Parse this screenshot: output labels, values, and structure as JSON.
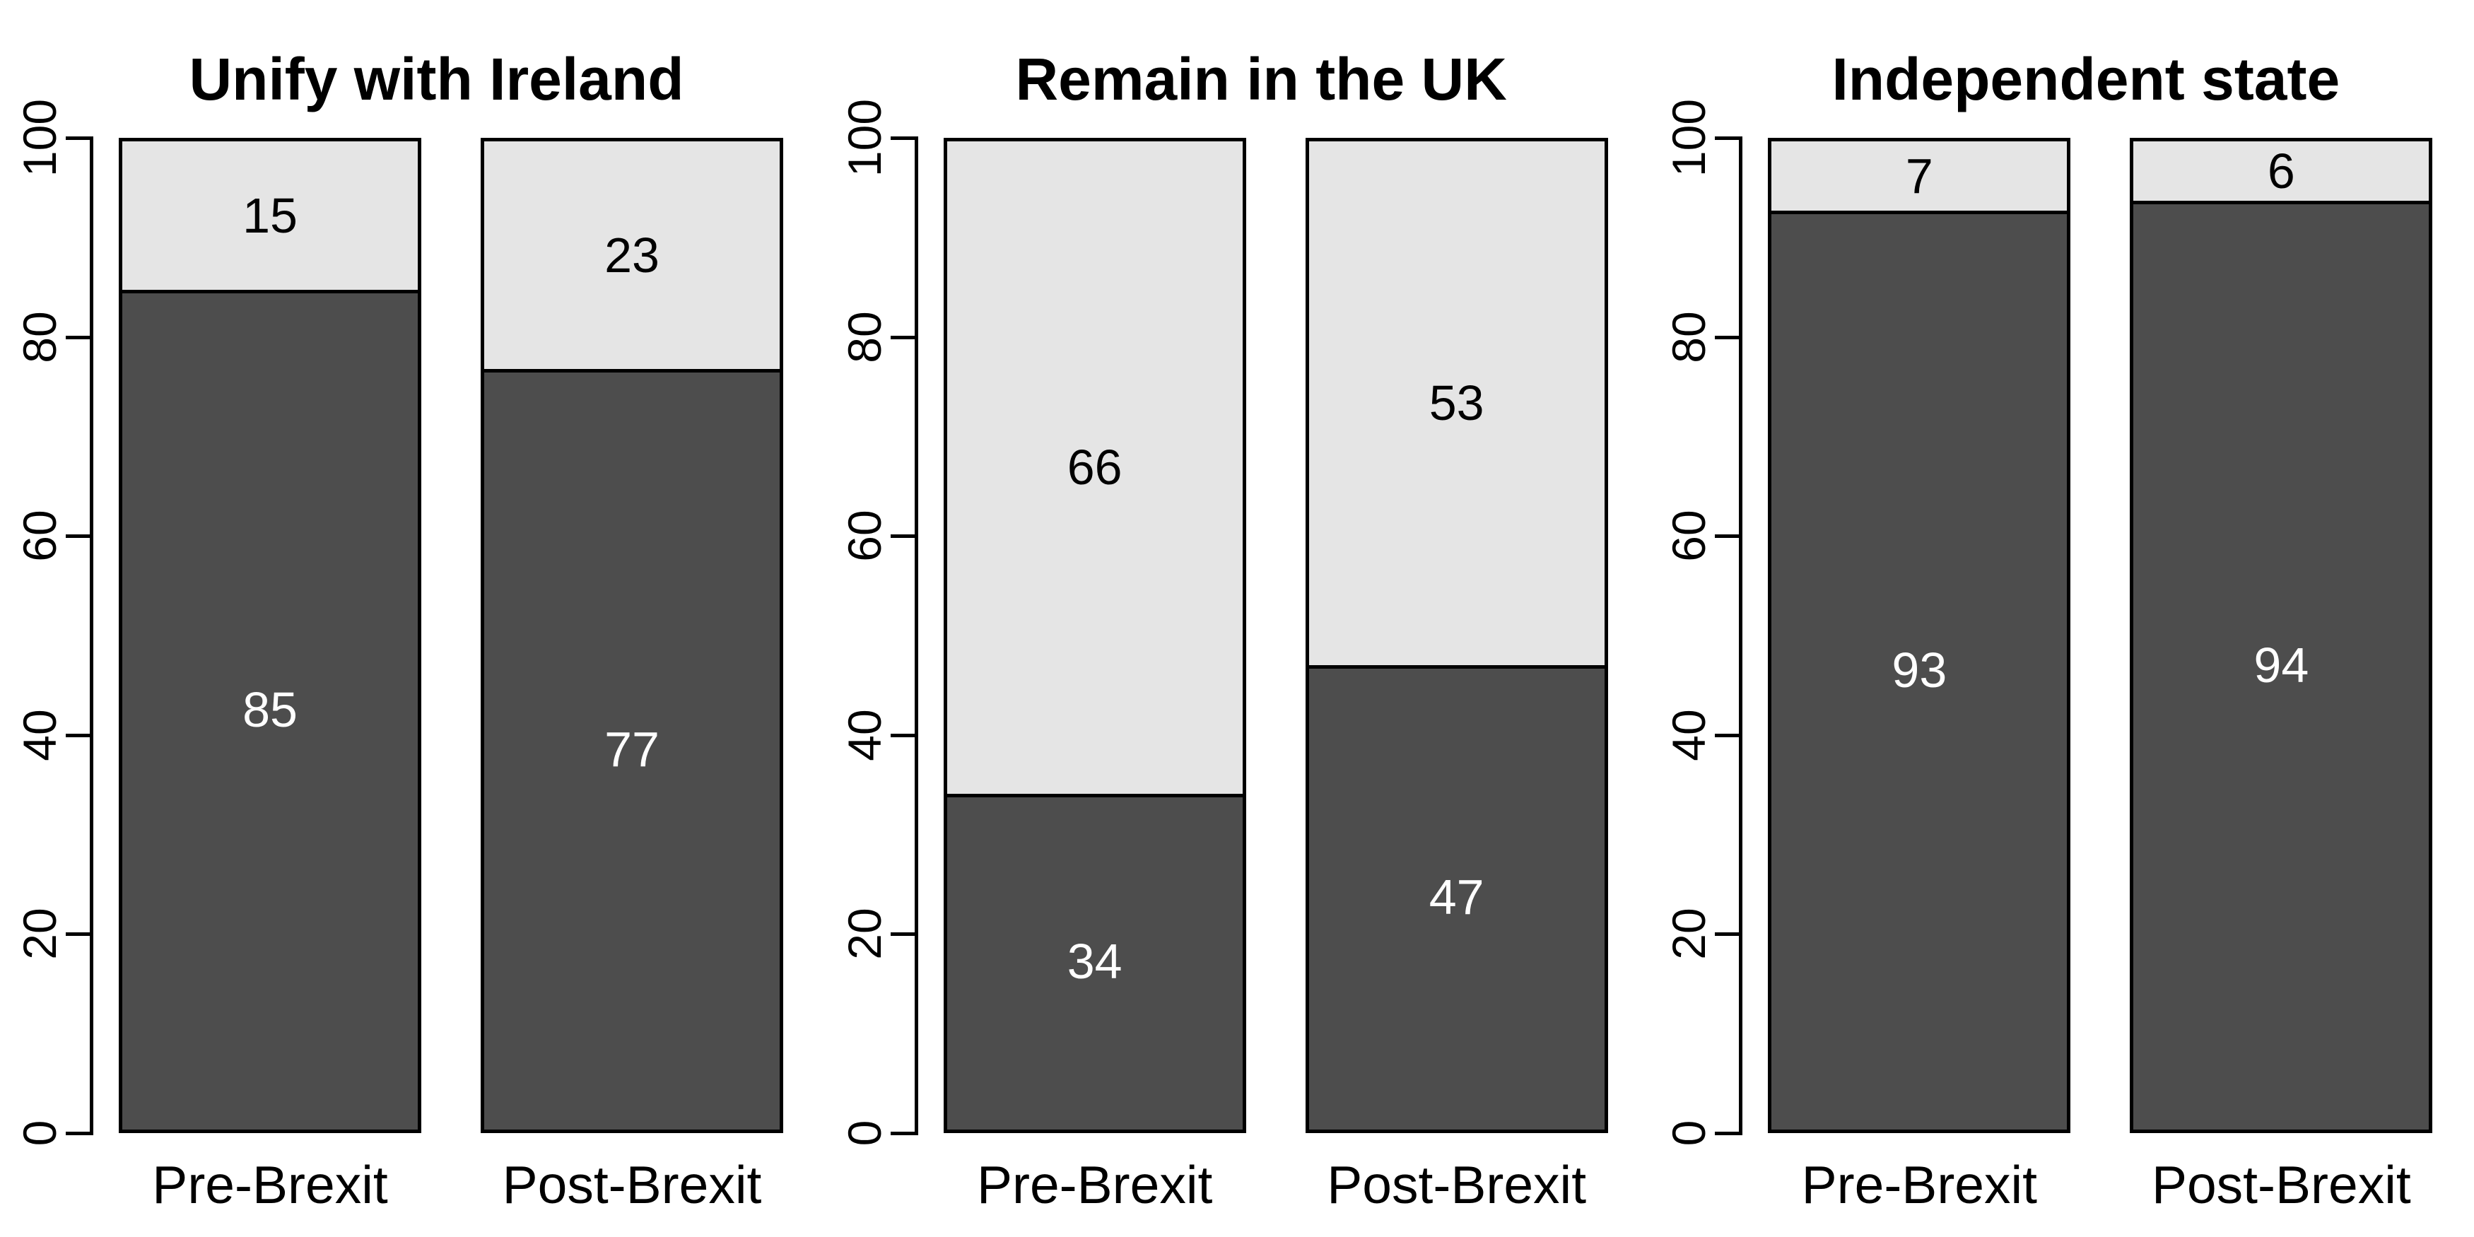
{
  "chart_data": {
    "type": "bar",
    "stacked": true,
    "orientation": "vertical",
    "grid": false,
    "legend": null,
    "ylim": [
      0,
      100
    ],
    "yticks": [
      0,
      20,
      40,
      60,
      80,
      100
    ],
    "colors": {
      "dark_segment": "#4d4d4d",
      "light_segment": "#e5e5e5",
      "border": "#000000",
      "label_on_dark": "#ffffff",
      "label_on_light": "#000000",
      "background": "#ffffff"
    },
    "panels": [
      {
        "title": "Unify with Ireland",
        "categories": [
          "Pre-Brexit",
          "Post-Brexit"
        ],
        "series": [
          {
            "name": "dark_gray_bottom",
            "values": [
              85,
              77
            ]
          },
          {
            "name": "light_gray_top",
            "values": [
              15,
              23
            ]
          }
        ]
      },
      {
        "title": "Remain in the UK",
        "categories": [
          "Pre-Brexit",
          "Post-Brexit"
        ],
        "series": [
          {
            "name": "dark_gray_bottom",
            "values": [
              34,
              47
            ]
          },
          {
            "name": "light_gray_top",
            "values": [
              66,
              53
            ]
          }
        ]
      },
      {
        "title": "Independent state",
        "categories": [
          "Pre-Brexit",
          "Post-Brexit"
        ],
        "series": [
          {
            "name": "dark_gray_bottom",
            "values": [
              93,
              94
            ]
          },
          {
            "name": "light_gray_top",
            "values": [
              7,
              6
            ]
          }
        ]
      }
    ]
  }
}
